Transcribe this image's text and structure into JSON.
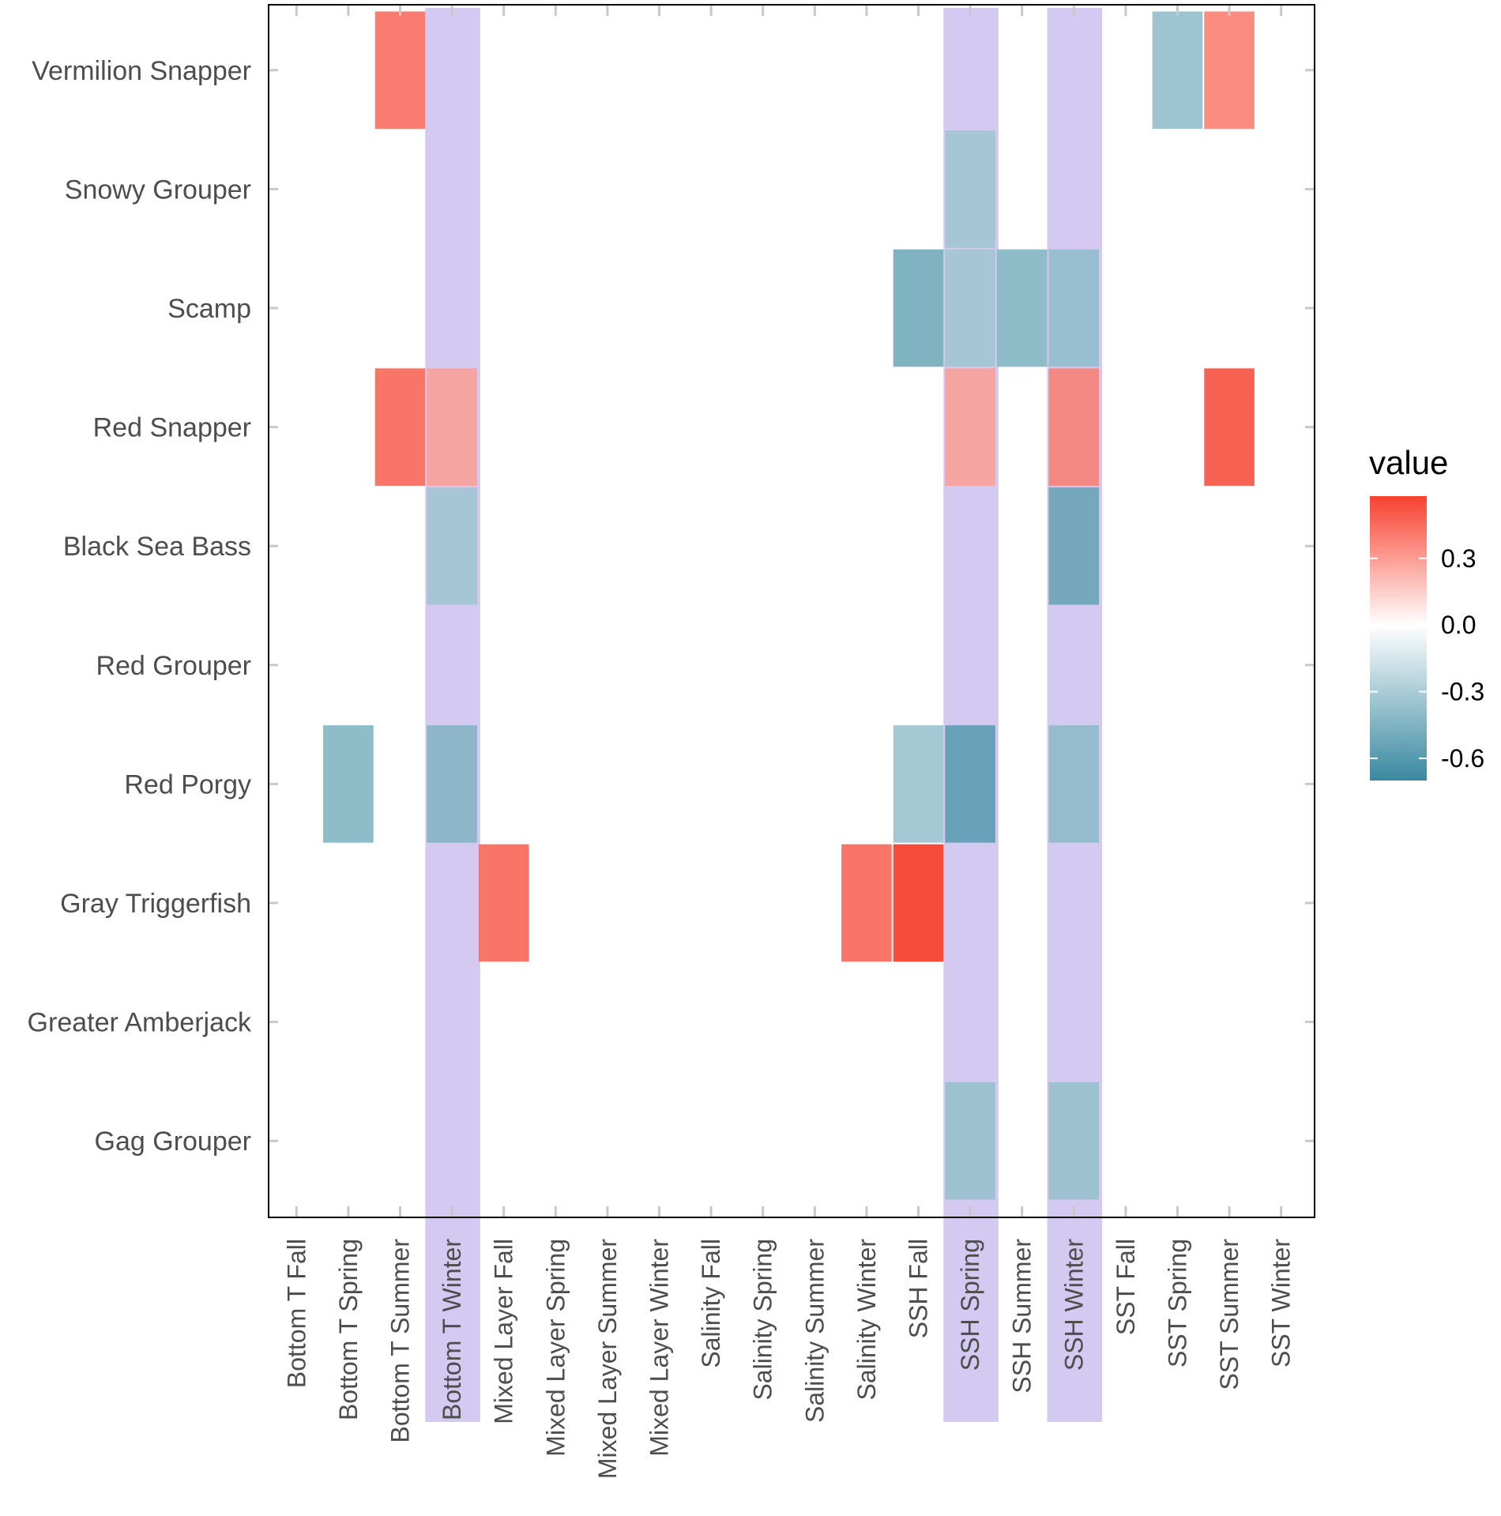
{
  "chart_data": {
    "type": "heatmap",
    "title": "",
    "xlabel": "",
    "ylabel": "",
    "x_categories": [
      "Bottom T Fall",
      "Bottom T Spring",
      "Bottom T Summer",
      "Bottom T Winter",
      "Mixed Layer Fall",
      "Mixed Layer Spring",
      "Mixed Layer Summer",
      "Mixed Layer Winter",
      "Salinity Fall",
      "Salinity Spring",
      "Salinity Summer",
      "Salinity Winter",
      "SSH Fall",
      "SSH Spring",
      "SSH Summer",
      "SSH Winter",
      "SST Fall",
      "SST Spring",
      "SST Summer",
      "SST Winter"
    ],
    "y_categories": [
      "Gag Grouper",
      "Greater Amberjack",
      "Gray Triggerfish",
      "Red Porgy",
      "Red Grouper",
      "Black Sea Bass",
      "Red Snapper",
      "Scamp",
      "Snowy Grouper ",
      "Vermilion Snapper"
    ],
    "highlighted_columns": [
      "Bottom T Winter",
      "SSH Spring",
      "SSH Winter"
    ],
    "highlight_color": "#d3c9f1",
    "cells": [
      {
        "x": "Bottom T Summer",
        "y": "Vermilion Snapper",
        "value": 0.4
      },
      {
        "x": "SST Spring",
        "y": "Vermilion Snapper",
        "value": -0.35
      },
      {
        "x": "SST Summer",
        "y": "Vermilion Snapper",
        "value": 0.35
      },
      {
        "x": "SSH Spring",
        "y": "Snowy Grouper ",
        "value": -0.35
      },
      {
        "x": "SSH Fall",
        "y": "Scamp",
        "value": -0.45
      },
      {
        "x": "SSH Spring",
        "y": "Scamp",
        "value": -0.35
      },
      {
        "x": "SSH Summer",
        "y": "Scamp",
        "value": -0.4
      },
      {
        "x": "SSH Winter",
        "y": "Scamp",
        "value": -0.4
      },
      {
        "x": "Bottom T Summer",
        "y": "Red Snapper",
        "value": 0.42
      },
      {
        "x": "Bottom T Winter",
        "y": "Red Snapper",
        "value": 0.3
      },
      {
        "x": "SSH Spring",
        "y": "Red Snapper",
        "value": 0.3
      },
      {
        "x": "SSH Winter",
        "y": "Red Snapper",
        "value": 0.4
      },
      {
        "x": "SST Summer",
        "y": "Red Snapper",
        "value": 0.48
      },
      {
        "x": "Bottom T Winter",
        "y": "Black Sea Bass",
        "value": -0.35
      },
      {
        "x": "SSH Winter",
        "y": "Black Sea Bass",
        "value": -0.55
      },
      {
        "x": "Bottom T Spring",
        "y": "Red Porgy",
        "value": -0.4
      },
      {
        "x": "Bottom T Winter",
        "y": "Red Porgy",
        "value": -0.45
      },
      {
        "x": "Salinity Fall",
        "y": "Red Porgy",
        "value": 0
      },
      {
        "x": "SSH Fall",
        "y": "Red Porgy",
        "value": -0.32
      },
      {
        "x": "SSH Spring",
        "y": "Red Porgy",
        "value": -0.6
      },
      {
        "x": "SSH Winter",
        "y": "Red Porgy",
        "value": -0.42
      },
      {
        "x": "Mixed Layer Fall",
        "y": "Gray Triggerfish",
        "value": 0.42
      },
      {
        "x": "Salinity Winter",
        "y": "Gray Triggerfish",
        "value": 0.42
      },
      {
        "x": "SSH Fall",
        "y": "Gray Triggerfish",
        "value": 0.55
      },
      {
        "x": "SSH Spring",
        "y": "Gag Grouper",
        "value": -0.38
      },
      {
        "x": "SSH Winter",
        "y": "Gag Grouper",
        "value": -0.38
      }
    ],
    "color_scale": {
      "low": "#3a89a0",
      "mid": "#ffffff",
      "high": "#f7412f",
      "min": -0.7,
      "max": 0.58
    },
    "legend": {
      "title": "value",
      "placement": "right",
      "ticks": [
        0.3,
        0.0,
        -0.3,
        -0.6
      ],
      "tick_labels": [
        "0.3",
        "0.0",
        "-0.3",
        "-0.6"
      ]
    },
    "grid": false
  }
}
